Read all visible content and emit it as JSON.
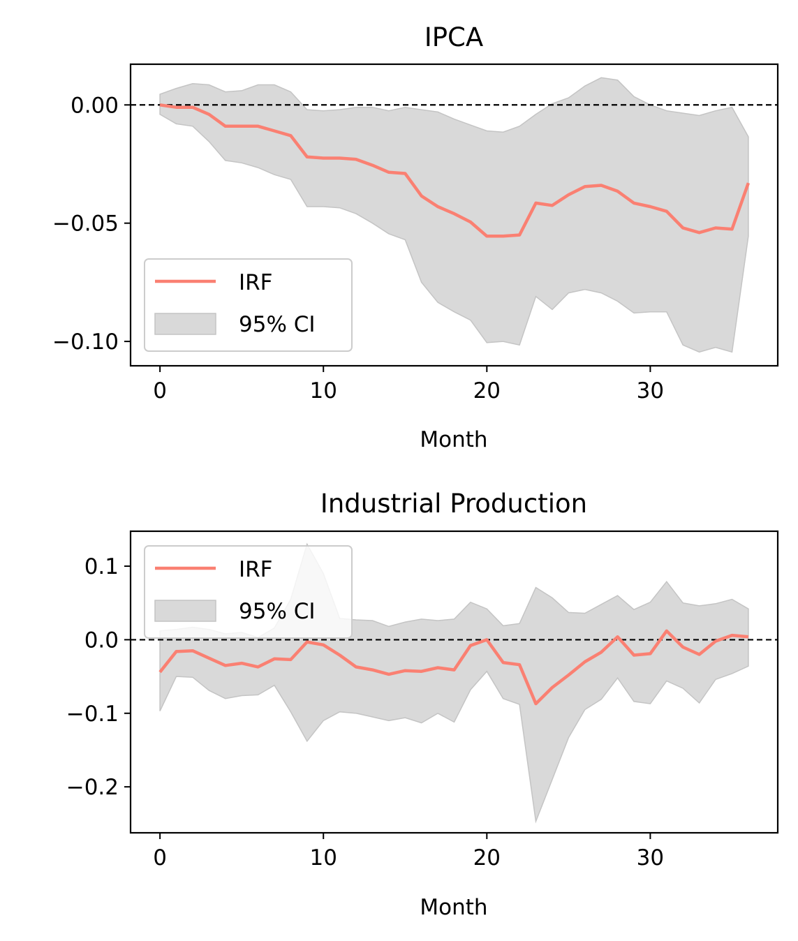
{
  "colors": {
    "irf": "#fa8072",
    "ci_fill": "#d9d9d9",
    "ci_edge": "#c4c4c4",
    "zero_line": "#000000"
  },
  "chart_data": [
    {
      "type": "line",
      "title": "IPCA",
      "xlabel": "Month",
      "ylabel": "",
      "xlim": [
        -1.8,
        37.8
      ],
      "ylim": [
        -0.1103,
        0.0172
      ],
      "xticks": [
        0,
        10,
        20,
        30
      ],
      "xtick_labels": [
        "0",
        "10",
        "20",
        "30"
      ],
      "yticks": [
        0.0,
        -0.05,
        -0.1
      ],
      "ytick_labels": [
        "0.00",
        "−0.05",
        "−0.10"
      ],
      "zero_line": true,
      "legend_position": "lower-left",
      "legend": [
        "IRF",
        "95% CI"
      ],
      "x": [
        0,
        1,
        2,
        3,
        4,
        5,
        6,
        7,
        8,
        9,
        10,
        11,
        12,
        13,
        14,
        15,
        16,
        17,
        18,
        19,
        20,
        21,
        22,
        23,
        24,
        25,
        26,
        27,
        28,
        29,
        30,
        31,
        32,
        33,
        34,
        35,
        36
      ],
      "series": [
        {
          "name": "IRF",
          "values": [
            0.0,
            -0.001,
            -0.001,
            -0.004,
            -0.009,
            -0.009,
            -0.009,
            -0.011,
            -0.013,
            -0.022,
            -0.0225,
            -0.0225,
            -0.023,
            -0.0255,
            -0.0285,
            -0.029,
            -0.0385,
            -0.043,
            -0.046,
            -0.0495,
            -0.0555,
            -0.0555,
            -0.055,
            -0.0415,
            -0.0425,
            -0.038,
            -0.0345,
            -0.034,
            -0.0365,
            -0.0415,
            -0.043,
            -0.045,
            -0.052,
            -0.054,
            -0.052,
            -0.0525,
            -0.033
          ]
        },
        {
          "name": "95% CI upper",
          "values": [
            0.0045,
            0.007,
            0.009,
            0.0085,
            0.0055,
            0.006,
            0.0085,
            0.0085,
            0.0055,
            -0.002,
            -0.0025,
            -0.002,
            -0.001,
            -0.001,
            -0.0025,
            -0.001,
            -0.002,
            -0.003,
            -0.006,
            -0.0085,
            -0.011,
            -0.0115,
            -0.009,
            -0.004,
            0.0005,
            0.003,
            0.008,
            0.0115,
            0.0105,
            0.0035,
            0.0,
            -0.0025,
            -0.0035,
            -0.0045,
            -0.0025,
            -0.001,
            -0.0135
          ]
        },
        {
          "name": "95% CI lower",
          "values": [
            -0.004,
            -0.008,
            -0.009,
            -0.0155,
            -0.0235,
            -0.0245,
            -0.0265,
            -0.0295,
            -0.0315,
            -0.043,
            -0.043,
            -0.0435,
            -0.046,
            -0.05,
            -0.0545,
            -0.057,
            -0.075,
            -0.0835,
            -0.0875,
            -0.091,
            -0.1005,
            -0.1,
            -0.1015,
            -0.081,
            -0.0865,
            -0.0795,
            -0.078,
            -0.0795,
            -0.083,
            -0.088,
            -0.0875,
            -0.0875,
            -0.1015,
            -0.1045,
            -0.1025,
            -0.1045,
            -0.0555
          ]
        }
      ]
    },
    {
      "type": "line",
      "title": "Industrial Production",
      "xlabel": "Month",
      "ylabel": "",
      "xlim": [
        -1.8,
        37.8
      ],
      "ylim": [
        -0.2625,
        0.1475
      ],
      "xticks": [
        0,
        10,
        20,
        30
      ],
      "xtick_labels": [
        "0",
        "10",
        "20",
        "30"
      ],
      "yticks": [
        0.1,
        0.0,
        -0.1,
        -0.2
      ],
      "ytick_labels": [
        "0.1",
        "0.0",
        "−0.1",
        "−0.2"
      ],
      "zero_line": true,
      "legend_position": "upper-left",
      "legend": [
        "IRF",
        "95% CI"
      ],
      "x": [
        0,
        1,
        2,
        3,
        4,
        5,
        6,
        7,
        8,
        9,
        10,
        11,
        12,
        13,
        14,
        15,
        16,
        17,
        18,
        19,
        20,
        21,
        22,
        23,
        24,
        25,
        26,
        27,
        28,
        29,
        30,
        31,
        32,
        33,
        34,
        35,
        36
      ],
      "series": [
        {
          "name": "IRF",
          "values": [
            -0.044,
            -0.016,
            -0.015,
            -0.025,
            -0.035,
            -0.032,
            -0.037,
            -0.026,
            -0.027,
            -0.003,
            -0.007,
            -0.021,
            -0.037,
            -0.041,
            -0.047,
            -0.042,
            -0.043,
            -0.038,
            -0.041,
            -0.008,
            0.0,
            -0.031,
            -0.034,
            -0.087,
            -0.065,
            -0.048,
            -0.03,
            -0.017,
            0.004,
            -0.021,
            -0.019,
            0.012,
            -0.01,
            -0.02,
            -0.002,
            0.006,
            0.004
          ]
        },
        {
          "name": "95% CI upper",
          "values": [
            0.012,
            0.014,
            0.017,
            0.014,
            0.008,
            0.01,
            0.003,
            0.016,
            0.055,
            0.13,
            0.09,
            0.029,
            0.027,
            0.026,
            0.018,
            0.024,
            0.028,
            0.026,
            0.028,
            0.051,
            0.042,
            0.019,
            0.022,
            0.071,
            0.057,
            0.037,
            0.036,
            0.048,
            0.06,
            0.041,
            0.051,
            0.079,
            0.05,
            0.046,
            0.049,
            0.055,
            0.042
          ]
        },
        {
          "name": "95% CI lower",
          "values": [
            -0.097,
            -0.05,
            -0.051,
            -0.069,
            -0.08,
            -0.076,
            -0.075,
            -0.062,
            -0.098,
            -0.138,
            -0.11,
            -0.098,
            -0.1,
            -0.105,
            -0.11,
            -0.106,
            -0.113,
            -0.1,
            -0.112,
            -0.068,
            -0.043,
            -0.08,
            -0.088,
            -0.247,
            -0.19,
            -0.133,
            -0.095,
            -0.081,
            -0.052,
            -0.084,
            -0.087,
            -0.056,
            -0.066,
            -0.086,
            -0.054,
            -0.046,
            -0.036
          ]
        }
      ]
    }
  ]
}
